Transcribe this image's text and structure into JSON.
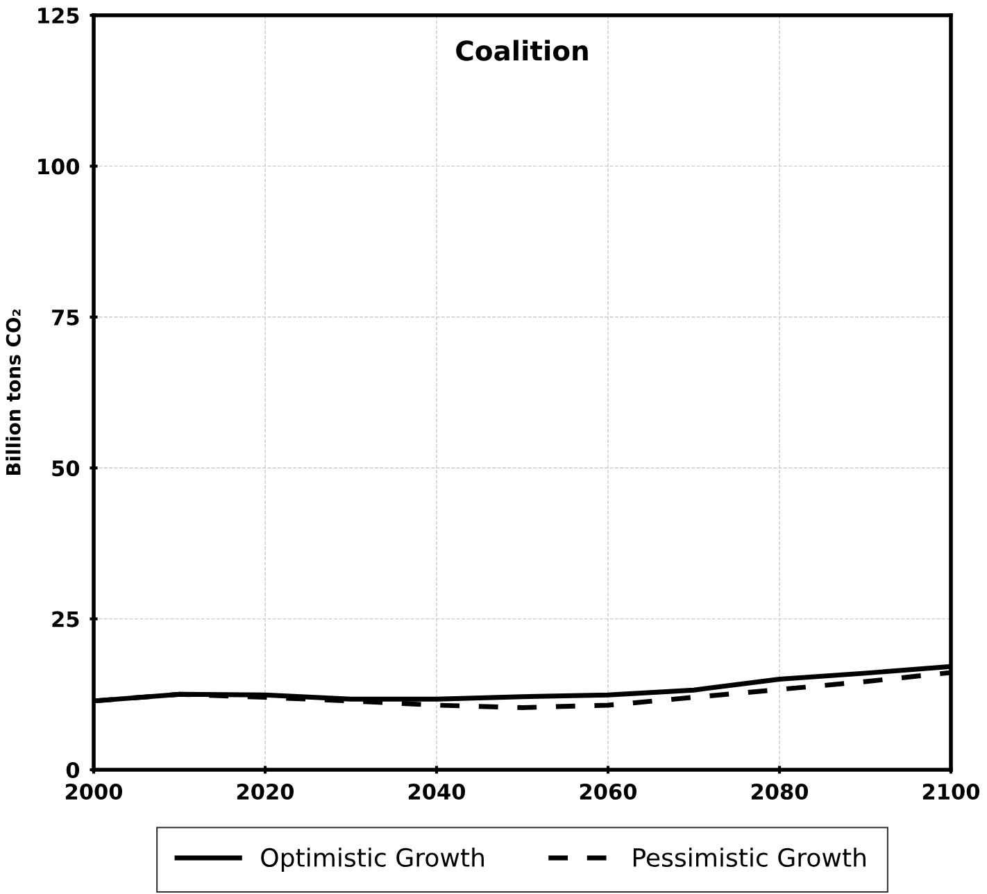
{
  "chart_data": {
    "type": "line",
    "title": "Coalition",
    "ylabel": "Billion tons CO₂",
    "x": [
      2000,
      2010,
      2020,
      2030,
      2040,
      2050,
      2060,
      2070,
      2080,
      2090,
      2100
    ],
    "series": [
      {
        "name": "Optimistic Growth",
        "color": "#000000",
        "line_style": "solid",
        "values": [
          11.4,
          12.5,
          12.4,
          11.7,
          11.7,
          12.1,
          12.4,
          13.2,
          15.0,
          16.0,
          17.1
        ]
      },
      {
        "name": "Pessimistic Growth",
        "color": "#000000",
        "line_style": "dashed",
        "values": [
          11.4,
          12.5,
          12.0,
          11.4,
          10.7,
          10.3,
          10.7,
          12.0,
          13.3,
          14.6,
          16.1
        ]
      }
    ],
    "xlim": [
      2000,
      2100
    ],
    "xticks": [
      2000,
      2020,
      2040,
      2060,
      2080,
      2100
    ],
    "ylim": [
      0,
      125
    ],
    "yticks": [
      0,
      25,
      50,
      75,
      100,
      125
    ],
    "grid": true,
    "legend": "bottom",
    "marker": "none"
  }
}
